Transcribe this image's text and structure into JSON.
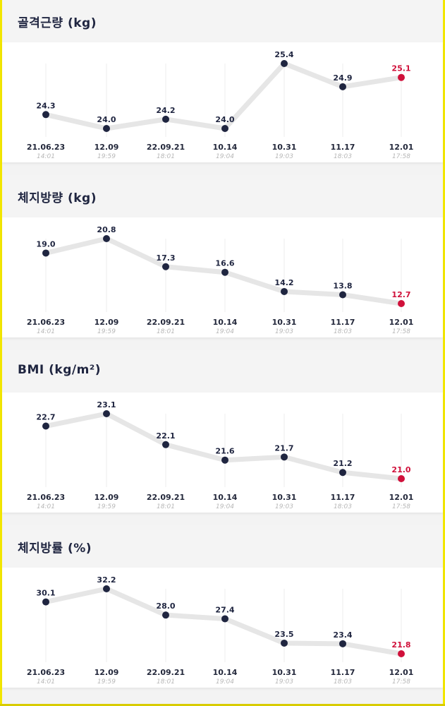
{
  "colors": {
    "line": "#e6e6e6",
    "point": "#1f2540",
    "latest": "#d0103a",
    "grid": "#eeeeee",
    "frame": "#f2e600"
  },
  "x_axis": {
    "dates": [
      "21.06.23",
      "12.09",
      "22.09.21",
      "10.14",
      "10.31",
      "11.17",
      "12.01"
    ],
    "times": [
      "14:01",
      "19:59",
      "18:01",
      "19:04",
      "19:03",
      "18:03",
      "17:58"
    ]
  },
  "chart_data": [
    {
      "type": "line",
      "title": "골격근량 (kg)",
      "categories": [
        "21.06.23",
        "12.09",
        "22.09.21",
        "10.14",
        "10.31",
        "11.17",
        "12.01"
      ],
      "series": [
        {
          "values": [
            24.3,
            24.0,
            24.2,
            24.0,
            25.4,
            24.9,
            25.1
          ]
        }
      ],
      "value_labels": [
        "24.3",
        "24.0",
        "24.2",
        "24.0",
        "25.4",
        "24.9",
        "25.1"
      ],
      "highlight_last": true
    },
    {
      "type": "line",
      "title": "체지방량 (kg)",
      "categories": [
        "21.06.23",
        "12.09",
        "22.09.21",
        "10.14",
        "10.31",
        "11.17",
        "12.01"
      ],
      "series": [
        {
          "values": [
            19.0,
            20.8,
            17.3,
            16.6,
            14.2,
            13.8,
            12.7
          ]
        }
      ],
      "value_labels": [
        "19.0",
        "20.8",
        "17.3",
        "16.6",
        "14.2",
        "13.8",
        "12.7"
      ],
      "highlight_last": true
    },
    {
      "type": "line",
      "title": "BMI (kg/m²)",
      "categories": [
        "21.06.23",
        "12.09",
        "22.09.21",
        "10.14",
        "10.31",
        "11.17",
        "12.01"
      ],
      "series": [
        {
          "values": [
            22.7,
            23.1,
            22.1,
            21.6,
            21.7,
            21.2,
            21.0
          ]
        }
      ],
      "value_labels": [
        "22.7",
        "23.1",
        "22.1",
        "21.6",
        "21.7",
        "21.2",
        "21.0"
      ],
      "highlight_last": true
    },
    {
      "type": "line",
      "title": "체지방률 (%)",
      "categories": [
        "21.06.23",
        "12.09",
        "22.09.21",
        "10.14",
        "10.31",
        "11.17",
        "12.01"
      ],
      "series": [
        {
          "values": [
            30.1,
            32.2,
            28.0,
            27.4,
            23.5,
            23.4,
            21.8
          ]
        }
      ],
      "value_labels": [
        "30.1",
        "32.2",
        "28.0",
        "27.4",
        "23.5",
        "23.4",
        "21.8"
      ],
      "highlight_last": true
    }
  ]
}
